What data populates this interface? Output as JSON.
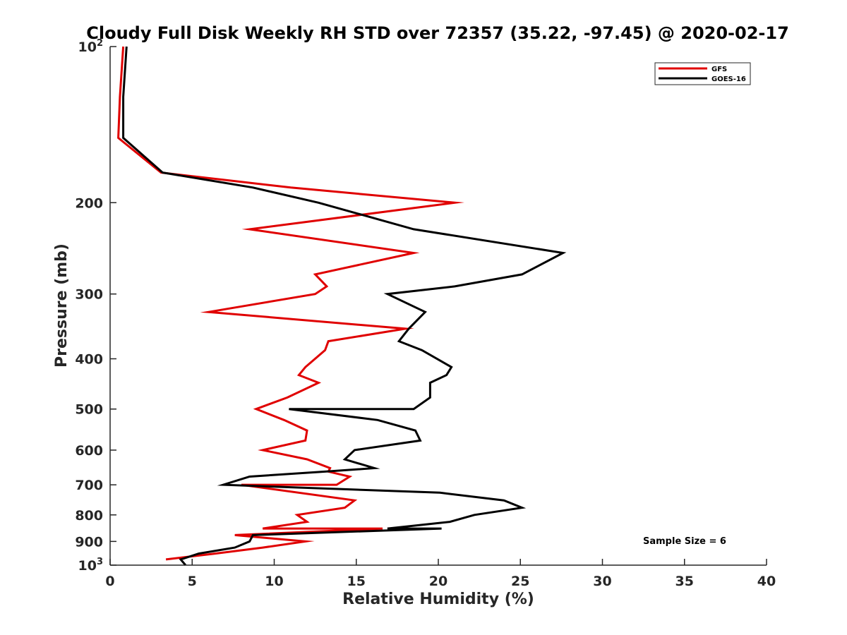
{
  "chart_data": {
    "type": "line",
    "title": "Cloudy Full Disk Weekly RH STD over 72357 (35.22, -97.45) @ 2020-02-17",
    "xlabel": "Relative Humidity (%)",
    "ylabel": "Pressure (mb)",
    "xlim": [
      0,
      40
    ],
    "ylim": [
      100,
      1000
    ],
    "y_scale": "log",
    "y_reversed": true,
    "grid": false,
    "legend_position": "top-right",
    "x_ticks": [
      "0",
      "5",
      "10",
      "15",
      "20",
      "25",
      "30",
      "35",
      "40"
    ],
    "y_ticks": [
      {
        "value": 100,
        "base": "10",
        "exp": "2"
      },
      {
        "value": 200,
        "label": "200"
      },
      {
        "value": 300,
        "label": "300"
      },
      {
        "value": 400,
        "label": "400"
      },
      {
        "value": 500,
        "label": "500"
      },
      {
        "value": 600,
        "label": "600"
      },
      {
        "value": 700,
        "label": "700"
      },
      {
        "value": 800,
        "label": "800"
      },
      {
        "value": 900,
        "label": "900"
      },
      {
        "value": 1000,
        "base": "10",
        "exp": "3"
      }
    ],
    "series": [
      {
        "name": "GFS",
        "color": "#e00000",
        "points": [
          [
            0.8,
            100
          ],
          [
            0.6,
            125
          ],
          [
            0.5,
            150
          ],
          [
            3.1,
            175
          ],
          [
            11.0,
            187
          ],
          [
            21.0,
            200
          ],
          [
            8.5,
            225
          ],
          [
            18.5,
            250
          ],
          [
            12.5,
            275
          ],
          [
            13.2,
            290
          ],
          [
            12.5,
            300
          ],
          [
            6.0,
            325
          ],
          [
            18.0,
            350
          ],
          [
            13.3,
            370
          ],
          [
            13.1,
            385
          ],
          [
            11.9,
            415
          ],
          [
            11.5,
            430
          ],
          [
            12.7,
            445
          ],
          [
            10.8,
            475
          ],
          [
            8.9,
            500
          ],
          [
            10.6,
            525
          ],
          [
            12.0,
            550
          ],
          [
            11.9,
            575
          ],
          [
            9.3,
            600
          ],
          [
            12.0,
            625
          ],
          [
            13.4,
            650
          ],
          [
            13.3,
            660
          ],
          [
            14.6,
            675
          ],
          [
            13.8,
            700
          ],
          [
            8.0,
            700
          ],
          [
            14.9,
            750
          ],
          [
            14.3,
            775
          ],
          [
            11.4,
            800
          ],
          [
            12.0,
            825
          ],
          [
            9.3,
            850
          ],
          [
            16.6,
            850
          ],
          [
            7.6,
            875
          ],
          [
            11.9,
            900
          ],
          [
            9.3,
            925
          ],
          [
            6.4,
            950
          ],
          [
            3.4,
            975
          ]
        ]
      },
      {
        "name": "GOES-16",
        "color": "#000000",
        "points": [
          [
            1.0,
            100
          ],
          [
            0.8,
            125
          ],
          [
            0.8,
            150
          ],
          [
            3.2,
            175
          ],
          [
            8.7,
            187
          ],
          [
            12.7,
            200
          ],
          [
            18.5,
            225
          ],
          [
            27.6,
            250
          ],
          [
            25.1,
            275
          ],
          [
            21.0,
            290
          ],
          [
            16.9,
            300
          ],
          [
            19.2,
            325
          ],
          [
            18.2,
            350
          ],
          [
            17.6,
            370
          ],
          [
            19.0,
            385
          ],
          [
            20.8,
            415
          ],
          [
            20.5,
            430
          ],
          [
            19.5,
            445
          ],
          [
            19.5,
            475
          ],
          [
            18.5,
            500
          ],
          [
            10.9,
            500
          ],
          [
            16.3,
            525
          ],
          [
            18.6,
            550
          ],
          [
            18.9,
            575
          ],
          [
            14.9,
            600
          ],
          [
            14.3,
            625
          ],
          [
            16.1,
            650
          ],
          [
            13.1,
            660
          ],
          [
            8.5,
            675
          ],
          [
            6.9,
            700
          ],
          [
            20.1,
            725
          ],
          [
            24.0,
            750
          ],
          [
            25.1,
            775
          ],
          [
            22.2,
            800
          ],
          [
            20.7,
            825
          ],
          [
            16.9,
            850
          ],
          [
            20.2,
            850
          ],
          [
            8.7,
            875
          ],
          [
            8.5,
            900
          ],
          [
            7.6,
            925
          ],
          [
            5.4,
            950
          ],
          [
            4.3,
            975
          ],
          [
            4.6,
            1000
          ]
        ]
      }
    ],
    "annotation": "Sample Size = 6"
  }
}
